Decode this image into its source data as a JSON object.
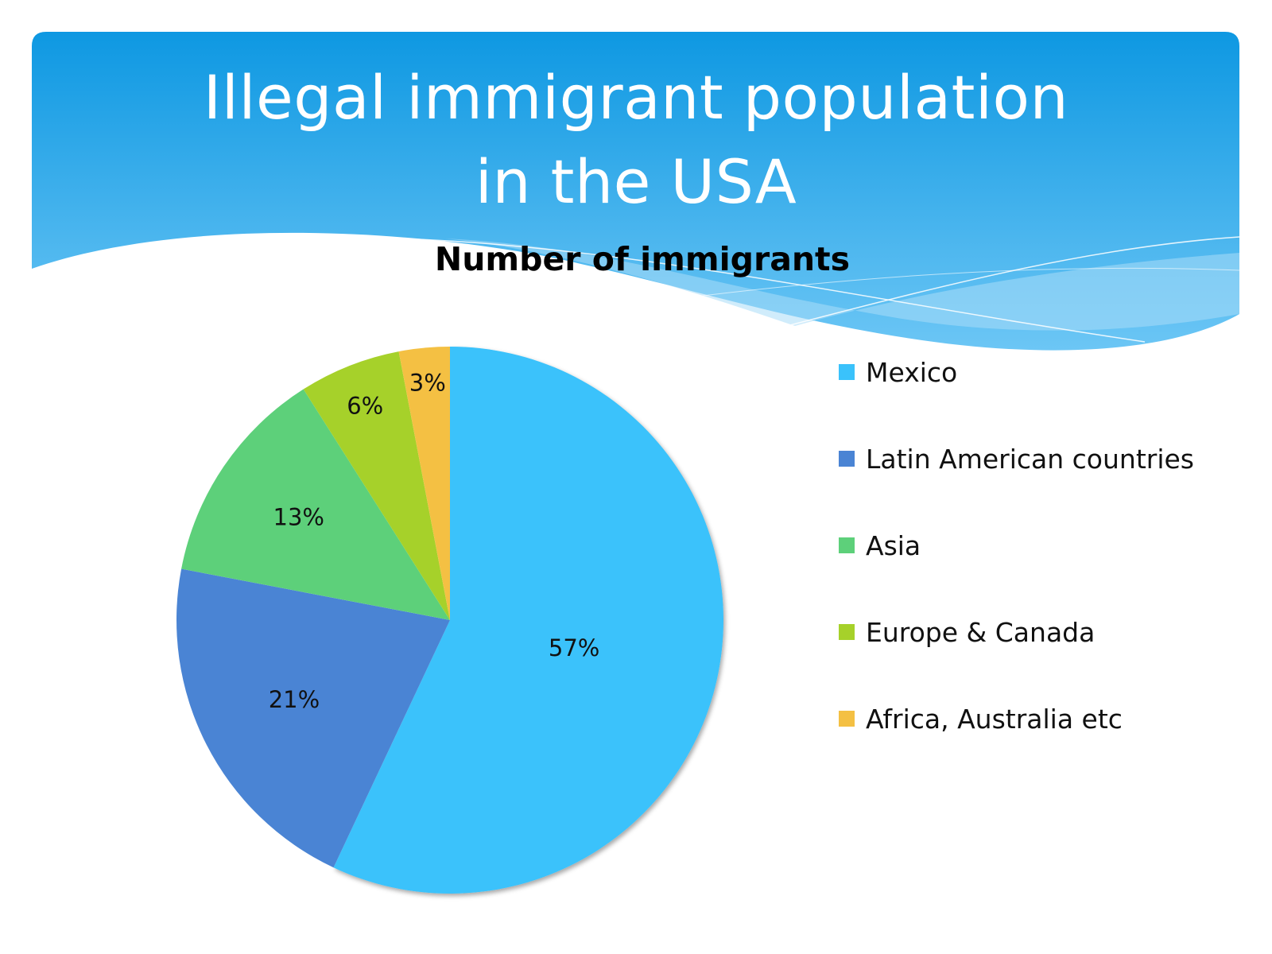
{
  "slide": {
    "title_line1": "Illegal immigrant population",
    "title_line2": "in the USA"
  },
  "colors": {
    "banner_top": "#0e98e2",
    "banner_bottom": "#6cc6f5",
    "wave_light": "#a9dcf8"
  },
  "chart_data": {
    "type": "pie",
    "title": "Number of immigrants",
    "categories": [
      "Mexico",
      "Latin American countries",
      "Asia",
      "Europe & Canada",
      "Africa, Australia etc"
    ],
    "values": [
      57,
      21,
      13,
      6,
      3
    ],
    "labels": [
      "57%",
      "21%",
      "13%",
      "6%",
      "3%"
    ],
    "colors": [
      "#3ac2fb",
      "#4a84d4",
      "#5dd07a",
      "#a6d12a",
      "#f4c043"
    ],
    "start_angle": "12 o'clock",
    "direction": "clockwise",
    "legend_position": "right"
  }
}
